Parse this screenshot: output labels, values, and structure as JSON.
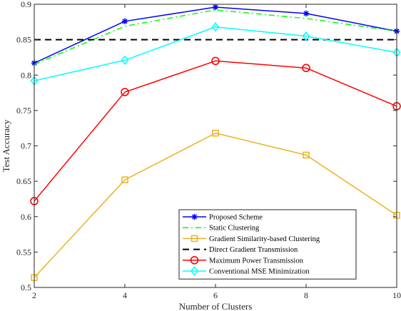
{
  "chart_data": {
    "type": "line",
    "xlabel": "Number of Clusters",
    "ylabel": "Test Accuracy",
    "xlim": [
      2,
      10
    ],
    "ylim": [
      0.5,
      0.9
    ],
    "grid": false,
    "legend_position": "bottom-right",
    "x_ticks": [
      2,
      4,
      6,
      8,
      10
    ],
    "x_tick_labels": [
      "2",
      "4",
      "6",
      "8",
      "10"
    ],
    "y_ticks": [
      0.5,
      0.55,
      0.6,
      0.65,
      0.7,
      0.75,
      0.8,
      0.85,
      0.9
    ],
    "y_tick_labels": [
      "0.5",
      "0.55",
      "0.6",
      "0.65",
      "0.7",
      "0.75",
      "0.8",
      "0.85",
      "0.9"
    ],
    "x": [
      2,
      4,
      6,
      8,
      10
    ],
    "series": [
      {
        "name": "Proposed Scheme",
        "values": [
          0.817,
          0.876,
          0.896,
          0.887,
          0.862
        ],
        "color": "#0000ff",
        "style": "solid",
        "marker": "asterisk"
      },
      {
        "name": "Static Clustering",
        "values": [
          0.815,
          0.869,
          0.892,
          0.88,
          0.862
        ],
        "color": "#00ff00",
        "style": "dashdot",
        "marker": "none"
      },
      {
        "name": "Gradient Similarity-based Clustering",
        "values": [
          0.514,
          0.652,
          0.718,
          0.687,
          0.602
        ],
        "color": "#edb120",
        "style": "solid",
        "marker": "square"
      },
      {
        "name": "Direct Gradient Transmission",
        "values": [
          0.85,
          0.85,
          0.85,
          0.85,
          0.85
        ],
        "color": "#000000",
        "style": "dashed",
        "marker": "none"
      },
      {
        "name": "Maximum Power Transmission",
        "values": [
          0.622,
          0.776,
          0.82,
          0.81,
          0.756
        ],
        "color": "#ff0000",
        "style": "solid",
        "marker": "circle"
      },
      {
        "name": "Conventional MSE Minimization",
        "values": [
          0.792,
          0.821,
          0.868,
          0.855,
          0.832
        ],
        "color": "#00ffff",
        "style": "solid",
        "marker": "diamond"
      }
    ]
  }
}
